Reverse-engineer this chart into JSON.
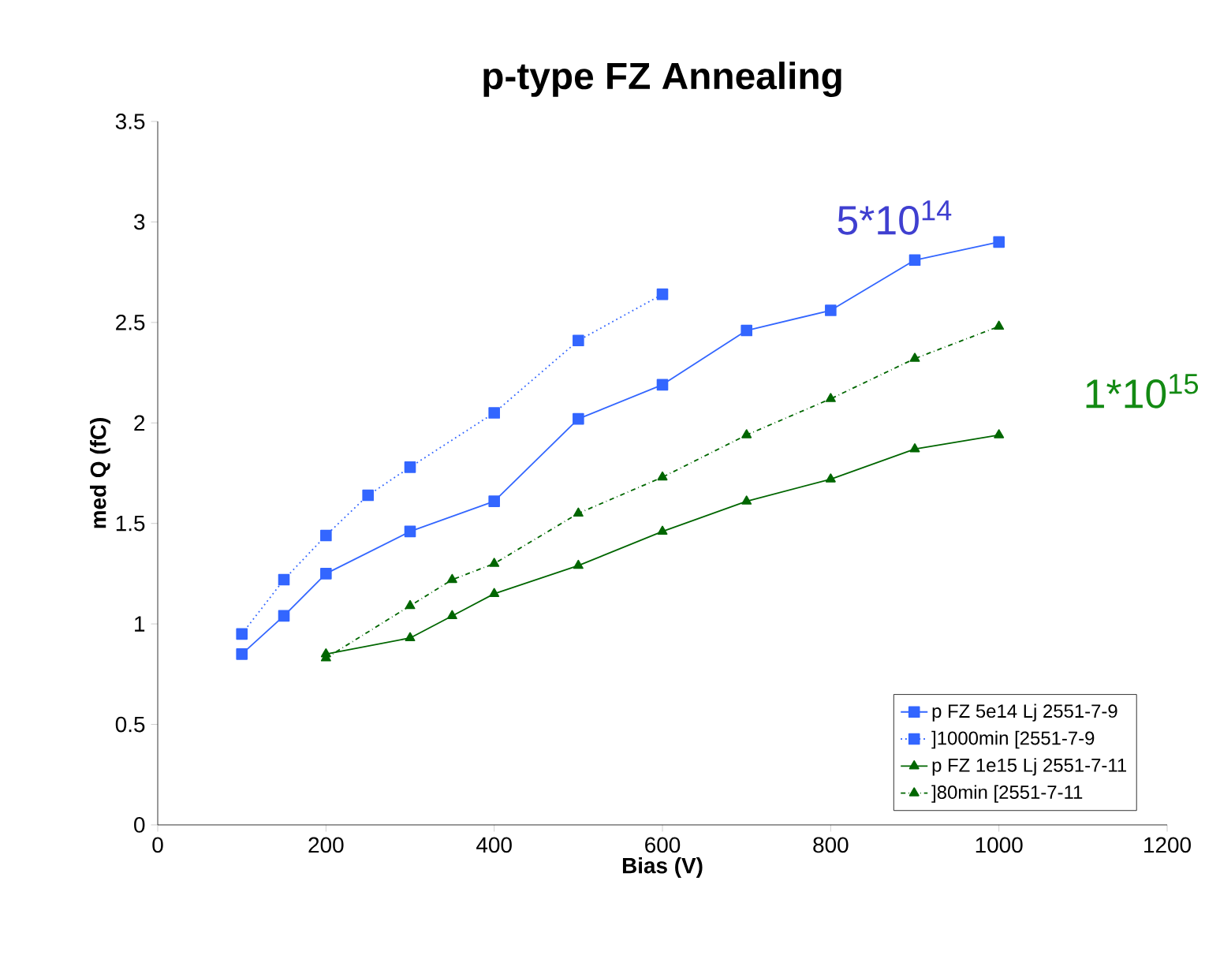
{
  "chart_data": {
    "type": "line",
    "title": "p-type FZ Annealing",
    "xlabel": "Bias (V)",
    "ylabel": "med Q (fC)",
    "xlim": [
      0,
      1200
    ],
    "xticks": [
      0,
      200,
      400,
      600,
      800,
      1000,
      1200
    ],
    "ylim": [
      0,
      3.5
    ],
    "yticks": [
      0,
      0.5,
      1,
      1.5,
      2,
      2.5,
      3,
      3.5
    ],
    "grid": false,
    "legend": "bottom right",
    "series": [
      {
        "name": "p FZ 5e14 Lj 2551-7-9",
        "color": "#3366ff",
        "marker": "square",
        "line_style": "solid",
        "x": [
          100,
          150,
          200,
          300,
          400,
          500,
          600,
          700,
          800,
          900,
          1000
        ],
        "values": [
          0.85,
          1.04,
          1.25,
          1.46,
          1.61,
          2.02,
          2.19,
          2.46,
          2.56,
          2.81,
          2.9
        ]
      },
      {
        "name": "]1000min [2551-7-9",
        "color": "#3366ff",
        "marker": "square",
        "line_style": "dotted",
        "x": [
          100,
          150,
          200,
          250,
          300,
          400,
          500,
          600
        ],
        "values": [
          0.95,
          1.22,
          1.44,
          1.64,
          1.78,
          2.05,
          2.41,
          2.64
        ]
      },
      {
        "name": "p FZ 1e15 Lj 2551-7-11",
        "color": "#006600",
        "marker": "triangle",
        "line_style": "solid",
        "x": [
          200,
          300,
          350,
          400,
          500,
          600,
          700,
          800,
          900,
          1000
        ],
        "values": [
          0.85,
          0.93,
          1.04,
          1.15,
          1.29,
          1.46,
          1.61,
          1.72,
          1.87,
          1.94
        ]
      },
      {
        "name": "]80min [2551-7-11",
        "color": "#006600",
        "marker": "triangle",
        "line_style": "dashdot",
        "x": [
          200,
          300,
          350,
          400,
          500,
          600,
          700,
          800,
          900,
          1000
        ],
        "values": [
          0.83,
          1.09,
          1.22,
          1.3,
          1.55,
          1.73,
          1.94,
          2.12,
          2.32,
          2.48
        ]
      }
    ],
    "annotations": [
      "5*10$^{14}$",
      "1*10$^{15}$"
    ]
  }
}
